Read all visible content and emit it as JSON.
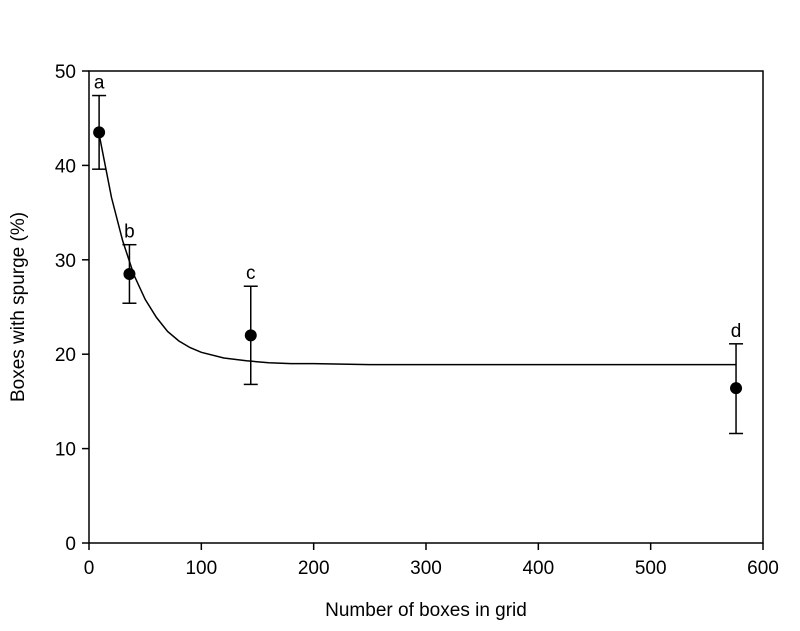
{
  "chart_data": {
    "type": "scatter",
    "title": "",
    "xlabel": "Number of boxes in grid",
    "ylabel": "Boxes with spurge (%)",
    "xlim": [
      0,
      600
    ],
    "ylim": [
      0,
      50
    ],
    "xticks": [
      0,
      100,
      200,
      300,
      400,
      500,
      600
    ],
    "yticks": [
      0,
      10,
      20,
      30,
      40,
      50
    ],
    "grid": false,
    "legend": "none",
    "points": [
      {
        "x": 9,
        "y": 43.5,
        "err_low": 39.6,
        "err_high": 47.4,
        "label": "a"
      },
      {
        "x": 36,
        "y": 28.5,
        "err_low": 25.4,
        "err_high": 31.6,
        "label": "b"
      },
      {
        "x": 144,
        "y": 22.0,
        "err_low": 16.8,
        "err_high": 27.2,
        "label": "c"
      },
      {
        "x": 576,
        "y": 16.4,
        "err_low": 11.6,
        "err_high": 21.1,
        "label": "d"
      }
    ],
    "fit_curve": {
      "type": "exponential_decay",
      "x": [
        9,
        20,
        30,
        40,
        50,
        60,
        70,
        80,
        90,
        100,
        120,
        140,
        160,
        180,
        200,
        250,
        300,
        400,
        500,
        576
      ],
      "y": [
        43.3,
        36.6,
        32.0,
        28.4,
        25.8,
        23.9,
        22.4,
        21.4,
        20.7,
        20.2,
        19.6,
        19.3,
        19.1,
        19.0,
        19.0,
        18.9,
        18.9,
        18.9,
        18.9,
        18.9
      ]
    },
    "colors": {
      "marker": "#000000",
      "line": "#000000"
    }
  }
}
